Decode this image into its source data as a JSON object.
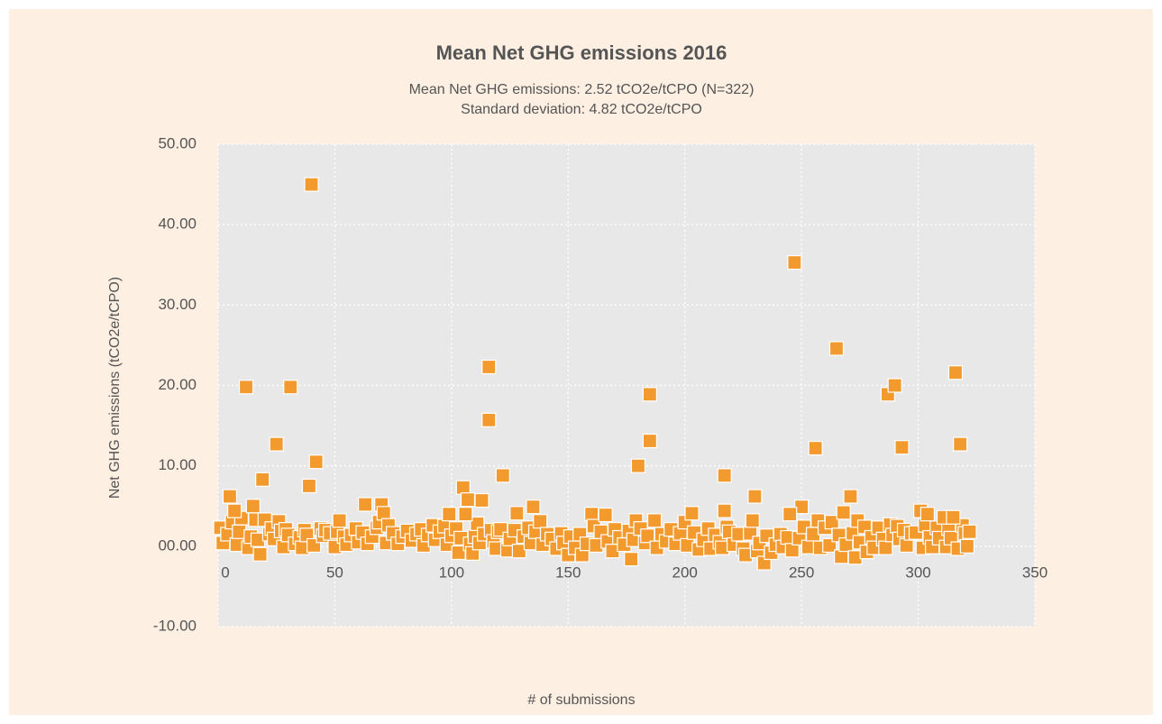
{
  "chart_data": {
    "type": "scatter",
    "title": "Mean Net GHG emissions 2016",
    "subtitle": [
      "Mean Net GHG emissions: 2.52 tCO2e/tCPO (N=322)",
      "Standard deviation: 4.82 tCO2e/tCPO"
    ],
    "xlabel": "# of submissions",
    "ylabel": "Net GHG emissions (tCO2e/tCPO)",
    "color": "#f39a2e",
    "grid": true,
    "xlim": [
      0,
      350
    ],
    "xticks": [
      0,
      50,
      100,
      150,
      200,
      250,
      300,
      350
    ],
    "ylim": [
      -10,
      50
    ],
    "yticks": [
      {
        "value": -10,
        "label": "-10.00"
      },
      {
        "value": 0,
        "label": "00.00"
      },
      {
        "value": 10,
        "label": "10.00"
      },
      {
        "value": 20,
        "label": "20.00"
      },
      {
        "value": 30,
        "label": "30.00"
      },
      {
        "value": 40,
        "label": "40.00"
      },
      {
        "value": 50,
        "label": "50.00"
      }
    ],
    "x": [
      1,
      2,
      4,
      6,
      8,
      9,
      10,
      13,
      14,
      16,
      17,
      18,
      20,
      22,
      23,
      24,
      26,
      27,
      28,
      29,
      30,
      33,
      35,
      36,
      37,
      38,
      41,
      44,
      45,
      46,
      48,
      50,
      51,
      52,
      54,
      55,
      57,
      59,
      60,
      62,
      63,
      64,
      66,
      68,
      69,
      70,
      71,
      72,
      73,
      75,
      77,
      79,
      81,
      83,
      85,
      87,
      88,
      90,
      92,
      93,
      95,
      97,
      98,
      100,
      102,
      103,
      104,
      108,
      109,
      110,
      111,
      112,
      114,
      117,
      118,
      119,
      120,
      121,
      124,
      125,
      127,
      128,
      129,
      131,
      133,
      134,
      135,
      136,
      138,
      139,
      141,
      143,
      145,
      147,
      148,
      150,
      151,
      153,
      155,
      156,
      158,
      160,
      161,
      162,
      164,
      166,
      167,
      169,
      170,
      172,
      174,
      176,
      177,
      178,
      179,
      181,
      183,
      184,
      187,
      188,
      190,
      192,
      194,
      196,
      198,
      200,
      201,
      203,
      204,
      206,
      208,
      210,
      211,
      213,
      215,
      216,
      218,
      219,
      221,
      223,
      225,
      226,
      228,
      229,
      231,
      232,
      234,
      235,
      237,
      239,
      241,
      242,
      244,
      246,
      249,
      251,
      253,
      255,
      257,
      258,
      260,
      262,
      263,
      266,
      267,
      269,
      272,
      273,
      274,
      275,
      277,
      278,
      280,
      281,
      283,
      285,
      286,
      288,
      289,
      291,
      292,
      294,
      295,
      297,
      299,
      302,
      303,
      305,
      306,
      308,
      309,
      312,
      313,
      314,
      317,
      319,
      320,
      321,
      322,
      12,
      31,
      25,
      19,
      42,
      40,
      39,
      5,
      7,
      15,
      116,
      116,
      122,
      105,
      107,
      113,
      106,
      99,
      180,
      185,
      185,
      217,
      230,
      217,
      247,
      250,
      245,
      256,
      265,
      268,
      271,
      287,
      290,
      293,
      301,
      304,
      316,
      318,
      311,
      315
    ],
    "values": [
      2.3,
      0.4,
      1.5,
      3,
      0.2,
      1.8,
      3.5,
      -0.2,
      1.2,
      3.3,
      0.8,
      -1,
      3.3,
      1.5,
      2.2,
      0.9,
      3.1,
      1.9,
      -0.1,
      2.1,
      1.4,
      0.3,
      1.1,
      -0.2,
      2,
      1.4,
      0.1,
      2.2,
      1.3,
      2,
      1.6,
      -0.1,
      1.8,
      3.2,
      1.2,
      0.2,
      1.4,
      2.2,
      0.5,
      1.7,
      5.2,
      0.3,
      1.2,
      2.3,
      3,
      5.2,
      4.1,
      0.4,
      2.6,
      1.6,
      0.3,
      1.2,
      1.9,
      0.7,
      1.5,
      2.1,
      0.1,
      1.4,
      2.6,
      0.8,
      1.8,
      2.5,
      0.2,
      1.3,
      2.2,
      -0.8,
      1,
      0.3,
      -0.9,
      1.2,
      2.8,
      0.4,
      1.5,
      2,
      0.6,
      -0.3,
      1.8,
      2.1,
      -0.5,
      0.9,
      2,
      4.1,
      -0.6,
      1.2,
      2.3,
      0.4,
      4.9,
      1.8,
      3.1,
      0.2,
      1.5,
      0.9,
      -0.3,
      1.6,
      0.4,
      -1.1,
      1.2,
      -0.2,
      1.5,
      -1.1,
      0.3,
      4,
      2.5,
      0.1,
      1.8,
      3.9,
      0.6,
      -0.6,
      2.1,
      1.1,
      0.2,
      1.9,
      -1.6,
      0.8,
      3.2,
      2.2,
      0.4,
      1.3,
      3.2,
      -0.2,
      1.5,
      0.6,
      2.1,
      0.3,
      1.6,
      3,
      0.1,
      4.1,
      1.7,
      -0.4,
      0.8,
      2.2,
      -0.3,
      1.4,
      0.5,
      -0.2,
      2.4,
      1.8,
      0.2,
      1.5,
      -0.3,
      -1.1,
      1.6,
      3.2,
      -0.6,
      0.4,
      -2.1,
      1.3,
      -0.8,
      0.2,
      1.5,
      -0.1,
      1.1,
      -0.5,
      1,
      2.4,
      -0.1,
      1.5,
      3.2,
      -0.2,
      2.3,
      0.1,
      3,
      1.4,
      -1.3,
      0.2,
      1.6,
      -1.4,
      3.2,
      0.5,
      2.4,
      -0.7,
      1.1,
      -0.2,
      2.3,
      0.9,
      -0.2,
      2.7,
      1.4,
      2.5,
      0.9,
      2,
      0.1,
      1.6,
      1.7,
      -0.2,
      2.6,
      1.1,
      -0.1,
      2.3,
      1,
      -0.1,
      2.2,
      1,
      -0.3,
      2.6,
      1.6,
      0,
      1.8,
      19.8,
      19.8,
      12.7,
      8.3,
      10.5,
      45,
      7.5,
      6.2,
      4.4,
      5,
      22.3,
      15.7,
      8.8,
      7.3,
      5.8,
      5.7,
      4,
      4,
      10,
      18.9,
      13.1,
      8.8,
      6.2,
      4.4,
      35.3,
      4.9,
      4,
      12.2,
      24.6,
      4.2,
      6.2,
      18.9,
      20,
      12.3,
      4.4,
      4,
      21.6,
      12.7,
      3.6,
      3.6
    ]
  }
}
